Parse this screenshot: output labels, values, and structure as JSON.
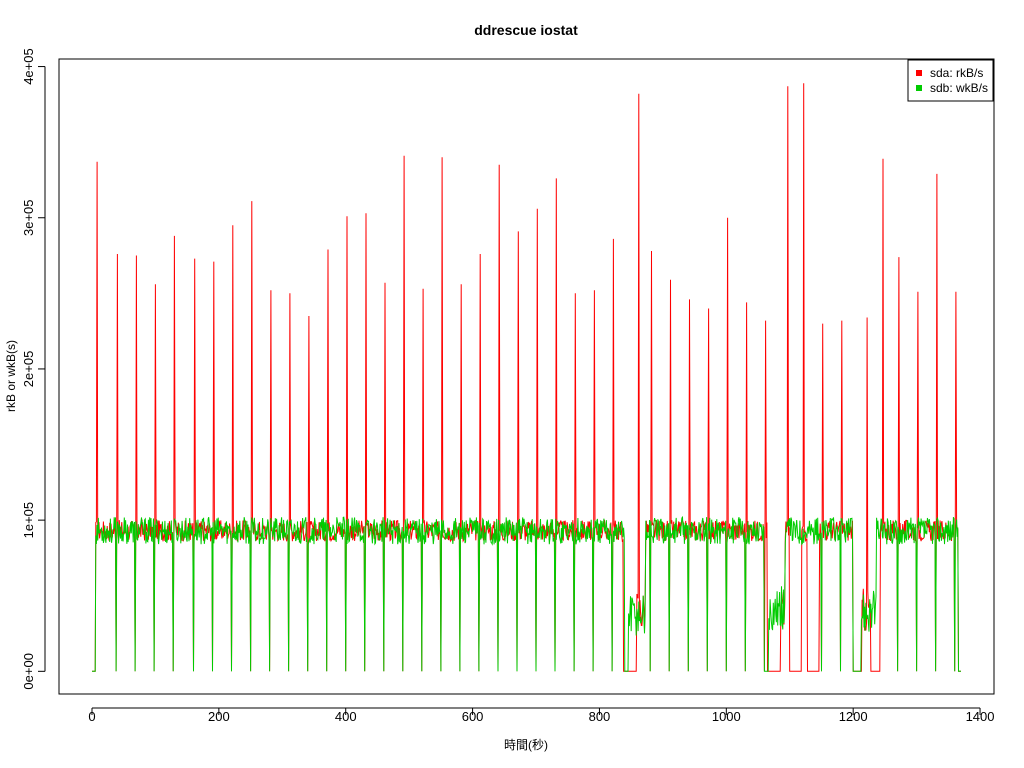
{
  "chart_data": {
    "type": "line",
    "title": "ddrescue iostat",
    "xlabel": "時間(秒)",
    "ylabel": "rkB or wkB(s)",
    "xlim": [
      -52,
      1422
    ],
    "ylim": [
      -15000,
      405000
    ],
    "x_ticks": [
      0,
      200,
      400,
      600,
      800,
      1000,
      1200,
      1400
    ],
    "x_tick_labels": [
      "0",
      "200",
      "400",
      "600",
      "800",
      "1000",
      "1200",
      "1400"
    ],
    "y_ticks": [
      0,
      100000,
      200000,
      300000,
      400000
    ],
    "y_tick_labels": [
      "0e+00",
      "1e+05",
      "2e+05",
      "3e+05",
      "4e+05"
    ],
    "grid": false,
    "legend_position": "top-right",
    "series": [
      {
        "name": "sda: rkB/s",
        "color": "#ff0000",
        "baseline": 93000,
        "noise": 7000,
        "spikes": [
          {
            "x": 8,
            "y": 337000
          },
          {
            "x": 40,
            "y": 276000
          },
          {
            "x": 70,
            "y": 275000
          },
          {
            "x": 100,
            "y": 256000
          },
          {
            "x": 130,
            "y": 288000
          },
          {
            "x": 162,
            "y": 273000
          },
          {
            "x": 192,
            "y": 271000
          },
          {
            "x": 222,
            "y": 295000
          },
          {
            "x": 252,
            "y": 311000
          },
          {
            "x": 282,
            "y": 252000
          },
          {
            "x": 312,
            "y": 250000
          },
          {
            "x": 342,
            "y": 235000
          },
          {
            "x": 372,
            "y": 279000
          },
          {
            "x": 402,
            "y": 301000
          },
          {
            "x": 432,
            "y": 303000
          },
          {
            "x": 462,
            "y": 257000
          },
          {
            "x": 492,
            "y": 341000
          },
          {
            "x": 522,
            "y": 253000
          },
          {
            "x": 552,
            "y": 340000
          },
          {
            "x": 582,
            "y": 256000
          },
          {
            "x": 612,
            "y": 276000
          },
          {
            "x": 642,
            "y": 335000
          },
          {
            "x": 672,
            "y": 291000
          },
          {
            "x": 702,
            "y": 306000
          },
          {
            "x": 732,
            "y": 326000
          },
          {
            "x": 762,
            "y": 250000
          },
          {
            "x": 792,
            "y": 252000
          },
          {
            "x": 822,
            "y": 286000
          },
          {
            "x": 862,
            "y": 382000
          },
          {
            "x": 882,
            "y": 278000
          },
          {
            "x": 912,
            "y": 259000
          },
          {
            "x": 942,
            "y": 246000
          },
          {
            "x": 972,
            "y": 240000
          },
          {
            "x": 1002,
            "y": 300000
          },
          {
            "x": 1032,
            "y": 244000
          },
          {
            "x": 1062,
            "y": 232000
          },
          {
            "x": 1097,
            "y": 387000
          },
          {
            "x": 1122,
            "y": 389000
          },
          {
            "x": 1152,
            "y": 230000
          },
          {
            "x": 1182,
            "y": 232000
          },
          {
            "x": 1222,
            "y": 234000
          },
          {
            "x": 1247,
            "y": 339000
          },
          {
            "x": 1272,
            "y": 274000
          },
          {
            "x": 1302,
            "y": 251000
          },
          {
            "x": 1332,
            "y": 329000
          },
          {
            "x": 1362,
            "y": 251000
          }
        ],
        "dips_to_zero": [
          38,
          68,
          98,
          128,
          160,
          190,
          220,
          250,
          280,
          310,
          340,
          370,
          400,
          430,
          460,
          490,
          520,
          550,
          580,
          610,
          640,
          670,
          700,
          730,
          760,
          790,
          820,
          880,
          910,
          940,
          970,
          1000,
          1030,
          1060,
          1150,
          1180,
          1270,
          1300,
          1330,
          1360
        ],
        "zero_ranges": [
          [
            0,
            5
          ],
          [
            838,
            858
          ],
          [
            1065,
            1085
          ],
          [
            1100,
            1118
          ],
          [
            1128,
            1146
          ],
          [
            1200,
            1213
          ],
          [
            1228,
            1242
          ],
          [
            1366,
            1370
          ]
        ],
        "low_ranges": [
          [
            852,
            872,
            40000
          ],
          [
            1072,
            1092,
            40000
          ],
          [
            1212,
            1236,
            40000
          ]
        ]
      },
      {
        "name": "sdb: wkB/s",
        "color": "#00cc00",
        "baseline": 93000,
        "noise": 9000,
        "spikes": [],
        "dips_to_zero": [
          38,
          68,
          98,
          128,
          160,
          190,
          220,
          250,
          280,
          310,
          340,
          370,
          400,
          430,
          460,
          490,
          520,
          550,
          580,
          610,
          640,
          670,
          700,
          730,
          760,
          790,
          820,
          880,
          910,
          940,
          970,
          1000,
          1030,
          1060,
          1150,
          1180,
          1270,
          1300,
          1330,
          1360
        ],
        "zero_ranges": [
          [
            0,
            5
          ],
          [
            840,
            845
          ],
          [
            1060,
            1066
          ],
          [
            1200,
            1212
          ],
          [
            1366,
            1370
          ]
        ],
        "low_ranges": [
          [
            845,
            872,
            38000
          ],
          [
            1066,
            1092,
            42000
          ],
          [
            1212,
            1236,
            40000
          ]
        ]
      }
    ]
  }
}
